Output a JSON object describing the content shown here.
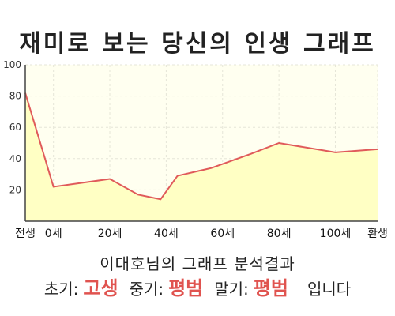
{
  "title": "재미로 보는 당신의 인생 그래프",
  "subtitle": "이대호님의 그래프 분석결과",
  "summary": {
    "early_label": "초기:",
    "early_value": "고생",
    "mid_label": "중기:",
    "mid_value": "평범",
    "late_label": "말기:",
    "late_value": "평범",
    "tail": "입니다"
  },
  "colors": {
    "line": "#e05a5a",
    "fill": "#ffffc4",
    "plot_bg": "#fffff0",
    "accent_text": "#e0534f"
  },
  "chart_data": {
    "type": "area",
    "title": "재미로 보는 당신의 인생 그래프",
    "xlabel": "",
    "ylabel": "",
    "ylim": [
      0,
      100
    ],
    "y_ticks": [
      20,
      40,
      60,
      80,
      100
    ],
    "x_ticks": [
      {
        "x": -10,
        "label": "전생"
      },
      {
        "x": 0,
        "label": "0세"
      },
      {
        "x": 20,
        "label": "20세"
      },
      {
        "x": 40,
        "label": "40세"
      },
      {
        "x": 60,
        "label": "60세"
      },
      {
        "x": 80,
        "label": "80세"
      },
      {
        "x": 100,
        "label": "100세"
      },
      {
        "x": 115,
        "label": "환생"
      }
    ],
    "grid": true,
    "series": [
      {
        "x": [
          -10,
          0,
          20,
          30,
          38,
          44,
          56,
          70,
          80,
          100,
          115
        ],
        "values": [
          82,
          22,
          27,
          17,
          14,
          29,
          34,
          43,
          50,
          44,
          46
        ]
      }
    ]
  }
}
